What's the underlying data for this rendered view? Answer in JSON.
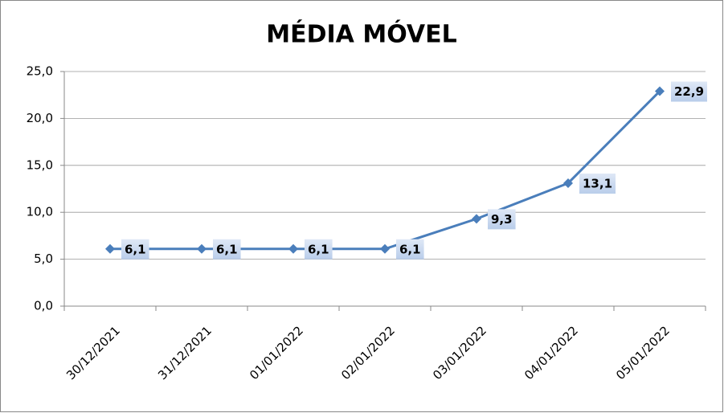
{
  "chart_data": {
    "type": "line",
    "title": "MÉDIA MÓVEL",
    "categories": [
      "30/12/2021",
      "31/12/2021",
      "01/01/2022",
      "02/01/2022",
      "03/01/2022",
      "04/01/2022",
      "05/01/2022"
    ],
    "values": [
      6.1,
      6.1,
      6.1,
      6.1,
      9.3,
      13.1,
      22.9
    ],
    "value_labels": [
      "6,1",
      "6,1",
      "6,1",
      "6,1",
      "9,3",
      "13,1",
      "22,9"
    ],
    "color": "#4a7ebb",
    "ylim": [
      0,
      25
    ],
    "yticks": [
      {
        "value": 0,
        "label": "0,0"
      },
      {
        "value": 5,
        "label": "5,0"
      },
      {
        "value": 10,
        "label": "10,0"
      },
      {
        "value": 15,
        "label": "15,0"
      },
      {
        "value": 20,
        "label": "20,0"
      },
      {
        "value": 25,
        "label": "25,0"
      }
    ],
    "grid": true
  }
}
